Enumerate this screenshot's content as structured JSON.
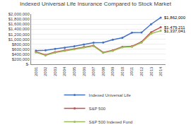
{
  "chart_data": {
    "type": "line",
    "title": "Indexed Universal Life Insurance Compared to Stock Market",
    "x": [
      2001,
      2002,
      2003,
      2004,
      2005,
      2006,
      2007,
      2008,
      2009,
      2010,
      2011,
      2012,
      2013,
      2014
    ],
    "series": [
      {
        "name": "Indexed Universal Life",
        "color": "#4472C4",
        "marker": "circle",
        "values": [
          550000,
          560000,
          620000,
          660000,
          720000,
          790000,
          860000,
          870000,
          980000,
          1060000,
          1260000,
          1270000,
          1600000,
          1862000
        ]
      },
      {
        "name": "S&P 500",
        "color": "#C0504D",
        "marker": "circle",
        "values": [
          500000,
          380000,
          490000,
          560000,
          620000,
          700000,
          750000,
          480000,
          560000,
          700000,
          720000,
          900000,
          1280000,
          1479211
        ]
      },
      {
        "name": "S&P 500 Indexed Fund",
        "color": "#9BBB59",
        "marker": "circle",
        "values": [
          480000,
          360000,
          470000,
          540000,
          600000,
          680000,
          730000,
          460000,
          540000,
          680000,
          700000,
          870000,
          1230000,
          1337041
        ]
      }
    ],
    "xlim": [
      2000.5,
      2014.5
    ],
    "xticks": [
      2001,
      2002,
      2003,
      2004,
      2005,
      2006,
      2007,
      2008,
      2009,
      2010,
      2011,
      2012,
      2013,
      2014
    ],
    "ylim": [
      0,
      2000000
    ],
    "yticks": [
      {
        "value": 0,
        "label": "$-"
      },
      {
        "value": 200000,
        "label": "$200,000"
      },
      {
        "value": 400000,
        "label": "$400,000"
      },
      {
        "value": 600000,
        "label": "$600,000"
      },
      {
        "value": 800000,
        "label": "$800,000"
      },
      {
        "value": 1000000,
        "label": "$1,000,000"
      },
      {
        "value": 1200000,
        "label": "$1,200,000"
      },
      {
        "value": 1400000,
        "label": "$1,400,000"
      },
      {
        "value": 1600000,
        "label": "$1,600,000"
      },
      {
        "value": 1800000,
        "label": "$1,800,000"
      },
      {
        "value": 2000000,
        "label": "$2,000,000"
      }
    ],
    "grid": "y",
    "legend": "bottom",
    "annotations": [
      {
        "text": "$1,862,000",
        "x": 2014,
        "y": 1862000
      },
      {
        "text": "$1,479,211",
        "x": 2014,
        "y": 1479211
      },
      {
        "text": "$1,337,041",
        "x": 2014,
        "y": 1337041
      }
    ]
  }
}
